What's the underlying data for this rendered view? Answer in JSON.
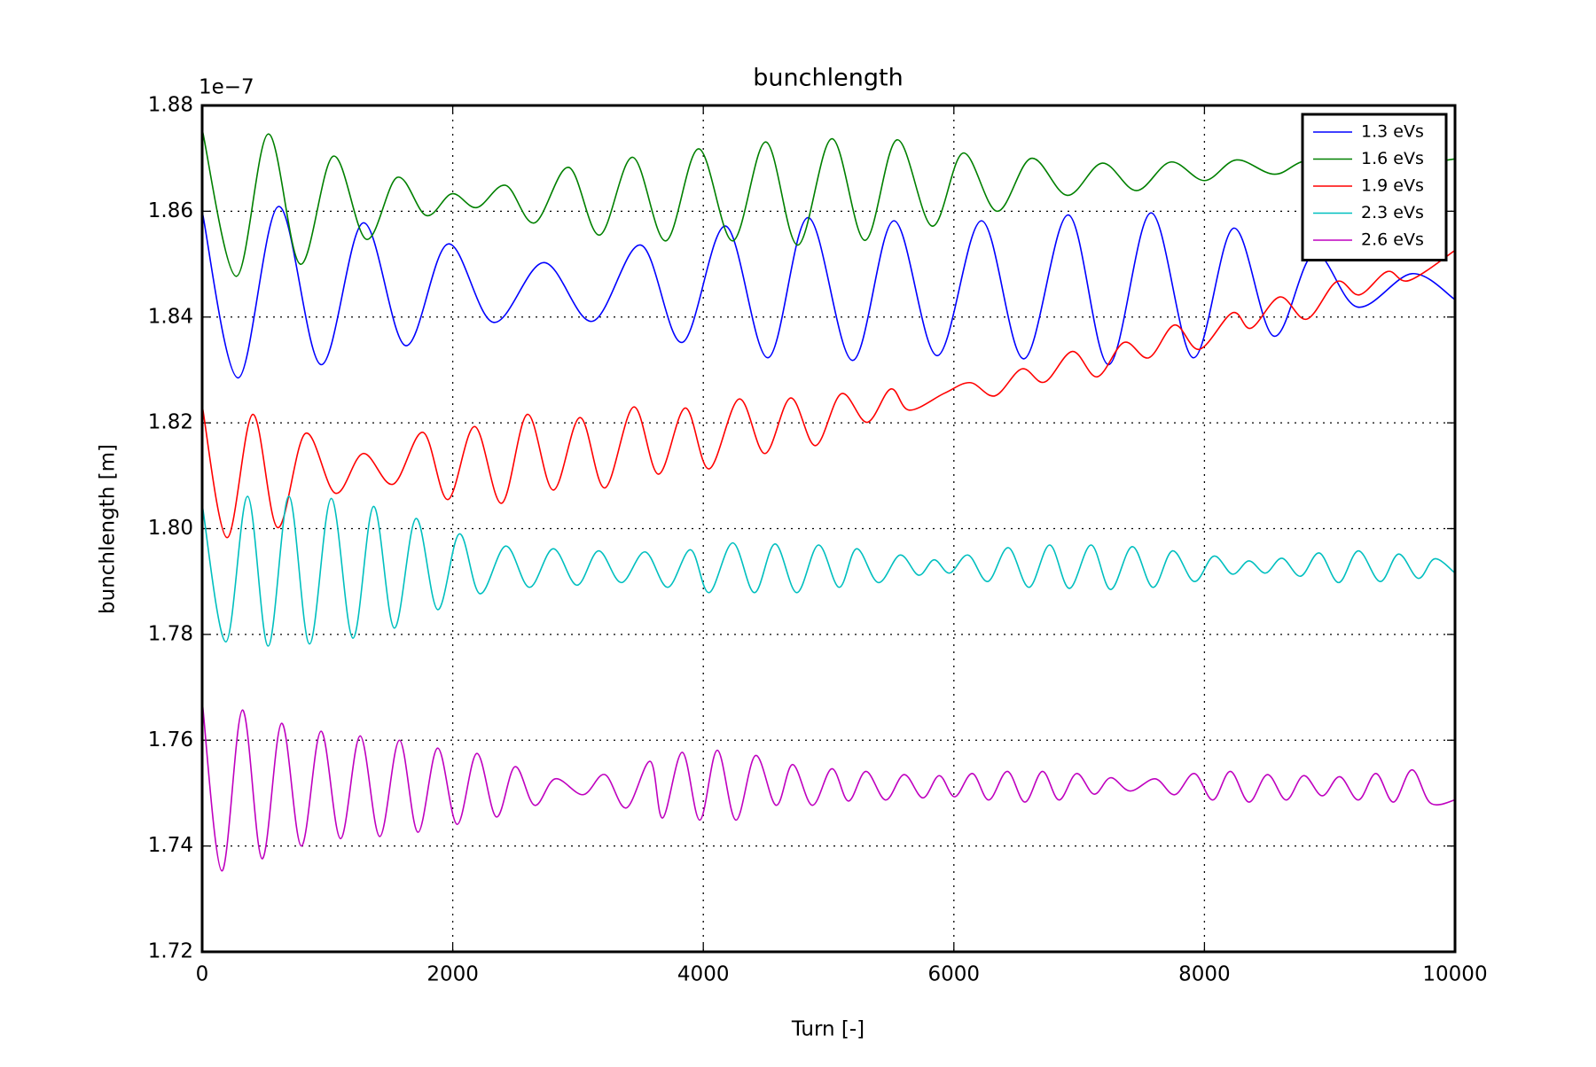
{
  "chart_data": {
    "type": "line",
    "title": "bunchlength",
    "xlabel": "Turn [-]",
    "ylabel": "bunchlength [m]",
    "y_offset_label": "1e−7",
    "xlim": [
      0,
      10000
    ],
    "xticks": [
      0,
      2000,
      4000,
      6000,
      8000,
      10000
    ],
    "ylim": [
      1.72,
      1.88
    ],
    "yticks": [
      1.72,
      1.74,
      1.76,
      1.78,
      {
        "value": 1.8,
        "label": "1.80"
      },
      1.82,
      1.84,
      1.86,
      1.88
    ],
    "grid": true,
    "legend": "upper right",
    "series": [
      {
        "name": "1.3 eVs",
        "color": "#0000ff",
        "x": [
          0,
          288,
          610,
          948,
          1285,
          1623,
          1961,
          2324,
          2727,
          3115,
          3502,
          3832,
          4178,
          4516,
          4837,
          5191,
          5521,
          5867,
          6221,
          6559,
          6913,
          7235,
          7573,
          7910,
          8232,
          8553,
          8874,
          9221,
          9657,
          10000
        ],
        "values": [
          1.86,
          1.8285,
          1.8609,
          1.831,
          1.8578,
          1.8346,
          1.8538,
          1.839,
          1.8503,
          1.8392,
          1.8536,
          1.8352,
          1.8572,
          1.8323,
          1.8588,
          1.8318,
          1.8582,
          1.8327,
          1.8582,
          1.8321,
          1.8593,
          1.831,
          1.8597,
          1.8323,
          1.8568,
          1.8364,
          1.852,
          1.8419,
          1.8482,
          1.8433
        ]
      },
      {
        "name": "1.6 eVs",
        "color": "#008000",
        "x": [
          0,
          272,
          527,
          783,
          1046,
          1310,
          1557,
          1788,
          1994,
          2192,
          2423,
          2653,
          2925,
          3172,
          3436,
          3700,
          3963,
          4235,
          4499,
          4754,
          5026,
          5290,
          5546,
          5826,
          6073,
          6345,
          6617,
          6905,
          7185,
          7457,
          7729,
          8001,
          8256,
          8561,
          8850,
          9400,
          10000
        ],
        "values": [
          1.8755,
          1.8477,
          1.8746,
          1.85,
          1.8704,
          1.8547,
          1.8664,
          1.8592,
          1.8633,
          1.8607,
          1.8649,
          1.8578,
          1.8683,
          1.8555,
          1.8702,
          1.8544,
          1.8718,
          1.8544,
          1.8731,
          1.8536,
          1.8737,
          1.8545,
          1.8735,
          1.8572,
          1.871,
          1.86,
          1.87,
          1.863,
          1.8691,
          1.8639,
          1.8693,
          1.8658,
          1.8697,
          1.867,
          1.8697,
          1.868,
          1.8699
        ]
      },
      {
        "name": "1.9 eVs",
        "color": "#ff0000",
        "x": [
          0,
          198,
          404,
          602,
          824,
          1063,
          1285,
          1524,
          1763,
          1961,
          2175,
          2390,
          2596,
          2802,
          3016,
          3214,
          3444,
          3642,
          3856,
          4046,
          4285,
          4491,
          4697,
          4895,
          5101,
          5307,
          5496,
          5644,
          5925,
          6130,
          6328,
          6542,
          6724,
          6946,
          7144,
          7358,
          7556,
          7762,
          7960,
          8223,
          8372,
          8602,
          8817,
          9056,
          9237,
          9460,
          9633,
          10000
        ],
        "values": [
          1.8233,
          1.7983,
          1.8216,
          1.8002,
          1.818,
          1.8067,
          1.8142,
          1.8084,
          1.8182,
          1.8055,
          1.8193,
          1.8048,
          1.8216,
          1.8073,
          1.821,
          1.8077,
          1.823,
          1.8103,
          1.8228,
          1.8113,
          1.8245,
          1.8142,
          1.8247,
          1.8157,
          1.8255,
          1.8201,
          1.8264,
          1.8224,
          1.8256,
          1.8276,
          1.8251,
          1.8302,
          1.8277,
          1.8335,
          1.8287,
          1.8352,
          1.8323,
          1.8385,
          1.8339,
          1.8408,
          1.8379,
          1.8438,
          1.8396,
          1.8467,
          1.8442,
          1.8486,
          1.8469,
          1.8526
        ]
      },
      {
        "name": "2.3 eVs",
        "color": "#00bfbf",
        "x": [
          0,
          190,
          363,
          527,
          692,
          857,
          1030,
          1203,
          1368,
          1533,
          1706,
          1879,
          2052,
          2217,
          2423,
          2612,
          2802,
          2991,
          3164,
          3345,
          3535,
          3716,
          3898,
          4046,
          4235,
          4408,
          4573,
          4746,
          4919,
          5084,
          5224,
          5397,
          5570,
          5719,
          5842,
          5966,
          6114,
          6271,
          6435,
          6600,
          6765,
          6922,
          7095,
          7251,
          7424,
          7589,
          7746,
          7919,
          8075,
          8224,
          8355,
          8487,
          8619,
          8767,
          8916,
          9072,
          9229,
          9402,
          9550,
          9707,
          9838,
          10000
        ],
        "values": [
          1.8046,
          1.7786,
          1.8061,
          1.7778,
          1.8061,
          1.7782,
          1.8057,
          1.7793,
          1.8042,
          1.7812,
          1.8019,
          1.7847,
          1.799,
          1.7877,
          1.7967,
          1.7889,
          1.7962,
          1.7893,
          1.7958,
          1.7898,
          1.7956,
          1.7889,
          1.796,
          1.7879,
          1.7973,
          1.7879,
          1.7971,
          1.7879,
          1.7969,
          1.7889,
          1.7962,
          1.7898,
          1.795,
          1.7912,
          1.7941,
          1.7916,
          1.795,
          1.79,
          1.7964,
          1.7889,
          1.7969,
          1.7887,
          1.7969,
          1.7885,
          1.7966,
          1.7889,
          1.7958,
          1.79,
          1.7948,
          1.7914,
          1.7939,
          1.7916,
          1.7944,
          1.791,
          1.7954,
          1.7898,
          1.7958,
          1.79,
          1.7952,
          1.7906,
          1.7943,
          1.7916
        ]
      },
      {
        "name": "2.6 eVs",
        "color": "#bf00bf",
        "x": [
          0,
          157,
          321,
          478,
          634,
          791,
          948,
          1104,
          1261,
          1417,
          1574,
          1722,
          1879,
          2035,
          2192,
          2348,
          2497,
          2653,
          2818,
          3040,
          3214,
          3386,
          3576,
          3675,
          3832,
          3972,
          4112,
          4260,
          4417,
          4581,
          4713,
          4870,
          5026,
          5158,
          5298,
          5455,
          5603,
          5752,
          5883,
          6007,
          6147,
          6279,
          6427,
          6567,
          6707,
          6839,
          6979,
          7119,
          7251,
          7408,
          7606,
          7762,
          7919,
          8067,
          8207,
          8355,
          8503,
          8652,
          8792,
          8940,
          9080,
          9229,
          9369,
          9509,
          9657,
          9805,
          10000
        ],
        "values": [
          1.7675,
          1.7353,
          1.7657,
          1.7376,
          1.7632,
          1.74,
          1.7617,
          1.7414,
          1.7608,
          1.7418,
          1.76,
          1.7426,
          1.7585,
          1.7441,
          1.7575,
          1.7455,
          1.755,
          1.7477,
          1.7527,
          1.7497,
          1.7535,
          1.7472,
          1.756,
          1.7453,
          1.7577,
          1.7449,
          1.7581,
          1.7449,
          1.7571,
          1.7477,
          1.7554,
          1.7477,
          1.7546,
          1.7485,
          1.7541,
          1.7487,
          1.7535,
          1.7491,
          1.7533,
          1.7493,
          1.7537,
          1.7487,
          1.7541,
          1.7483,
          1.7541,
          1.7487,
          1.7537,
          1.7498,
          1.7529,
          1.7504,
          1.7527,
          1.7497,
          1.7537,
          1.7487,
          1.7541,
          1.7483,
          1.7535,
          1.7487,
          1.7533,
          1.7495,
          1.7531,
          1.7487,
          1.7537,
          1.7483,
          1.7544,
          1.7481,
          1.7487
        ]
      }
    ]
  }
}
